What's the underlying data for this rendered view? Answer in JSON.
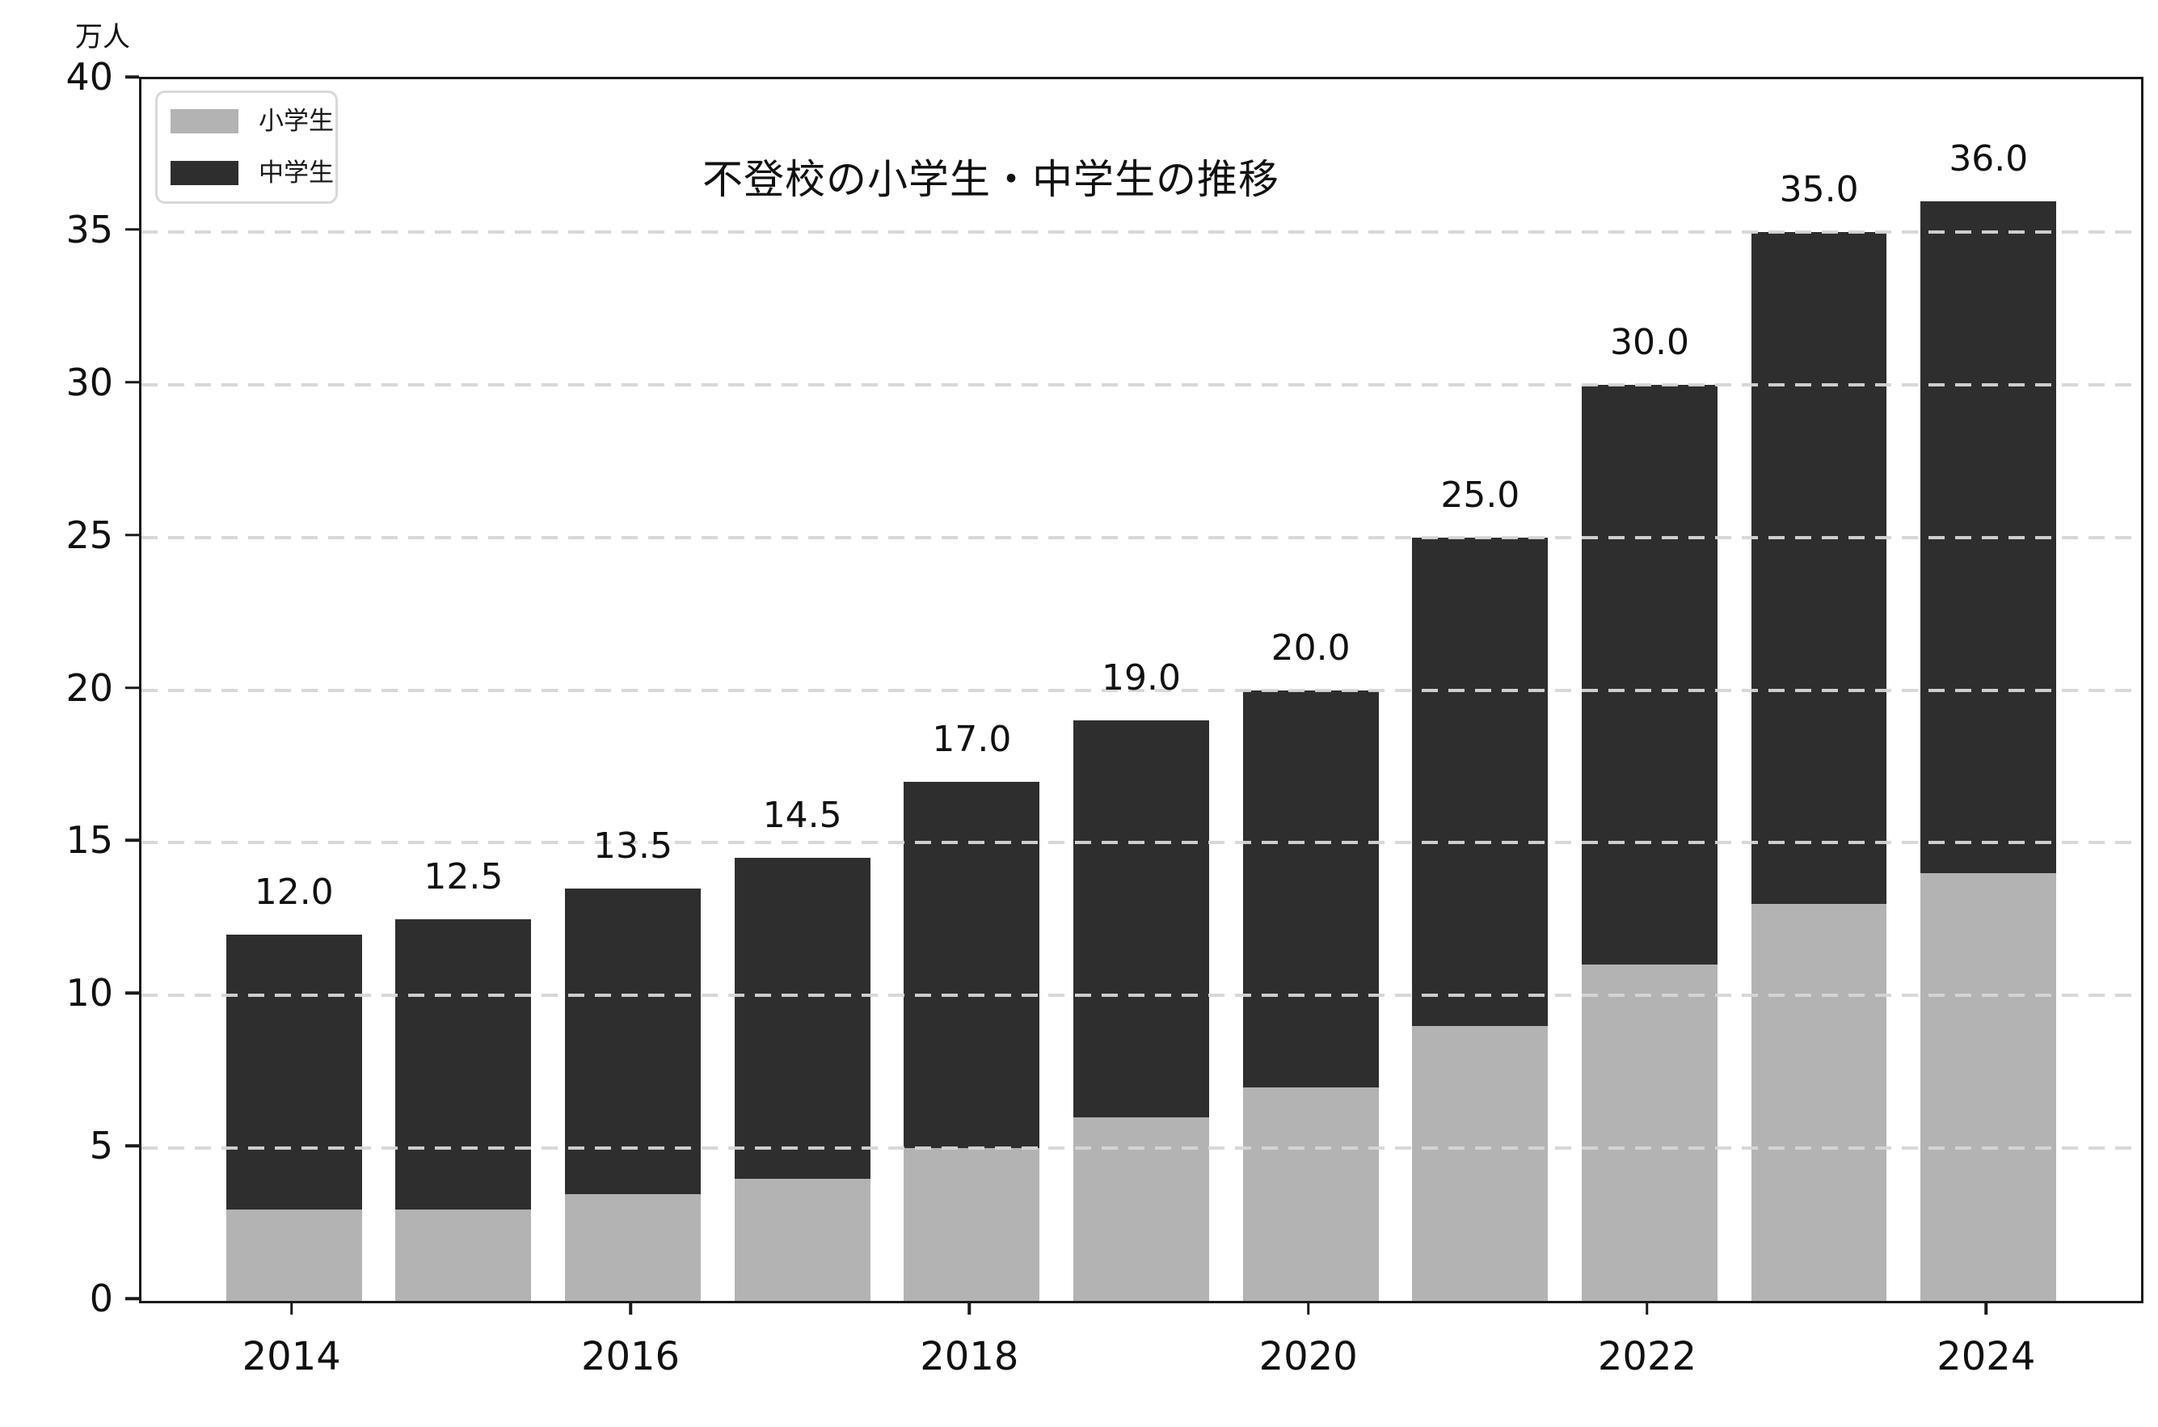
{
  "chart_data": {
    "type": "bar",
    "stacked": true,
    "title": "不登校の小学生・中学生の推移",
    "unit_label": "万人",
    "categories": [
      2014,
      2015,
      2016,
      2017,
      2018,
      2019,
      2020,
      2021,
      2022,
      2023,
      2024
    ],
    "x_tick_labels": [
      "2014",
      "2016",
      "2018",
      "2020",
      "2022",
      "2024"
    ],
    "series": [
      {
        "name": "小学生",
        "color": "#b3b3b3",
        "values": [
          3.0,
          3.0,
          3.5,
          4.0,
          5.0,
          6.0,
          7.0,
          9.0,
          11.0,
          13.0,
          14.0
        ]
      },
      {
        "name": "中学生",
        "color": "#2e2e2e",
        "values": [
          9.0,
          9.5,
          10.0,
          10.5,
          12.0,
          13.0,
          13.0,
          16.0,
          19.0,
          22.0,
          22.0
        ]
      }
    ],
    "totals": [
      12.0,
      12.5,
      13.5,
      14.5,
      17.0,
      19.0,
      20.0,
      25.0,
      30.0,
      35.0,
      36.0
    ],
    "total_labels": [
      "12.0",
      "12.5",
      "13.5",
      "14.5",
      "17.0",
      "19.0",
      "20.0",
      "25.0",
      "30.0",
      "35.0",
      "36.0"
    ],
    "ylim": [
      0,
      40
    ],
    "yticks": [
      0,
      5,
      10,
      15,
      20,
      25,
      30,
      35,
      40
    ],
    "grid": "dashed-horizontal",
    "legend_position": "upper-left",
    "colors": {
      "axis": "#1a1a1a",
      "gridline": "#d6d6d6",
      "text": "#111111",
      "legend_border": "#d8d8d8",
      "background": "#ffffff"
    }
  },
  "legend": {
    "items": [
      {
        "label": "小学生",
        "color": "#b3b3b3"
      },
      {
        "label": "中学生",
        "color": "#2e2e2e"
      }
    ]
  }
}
